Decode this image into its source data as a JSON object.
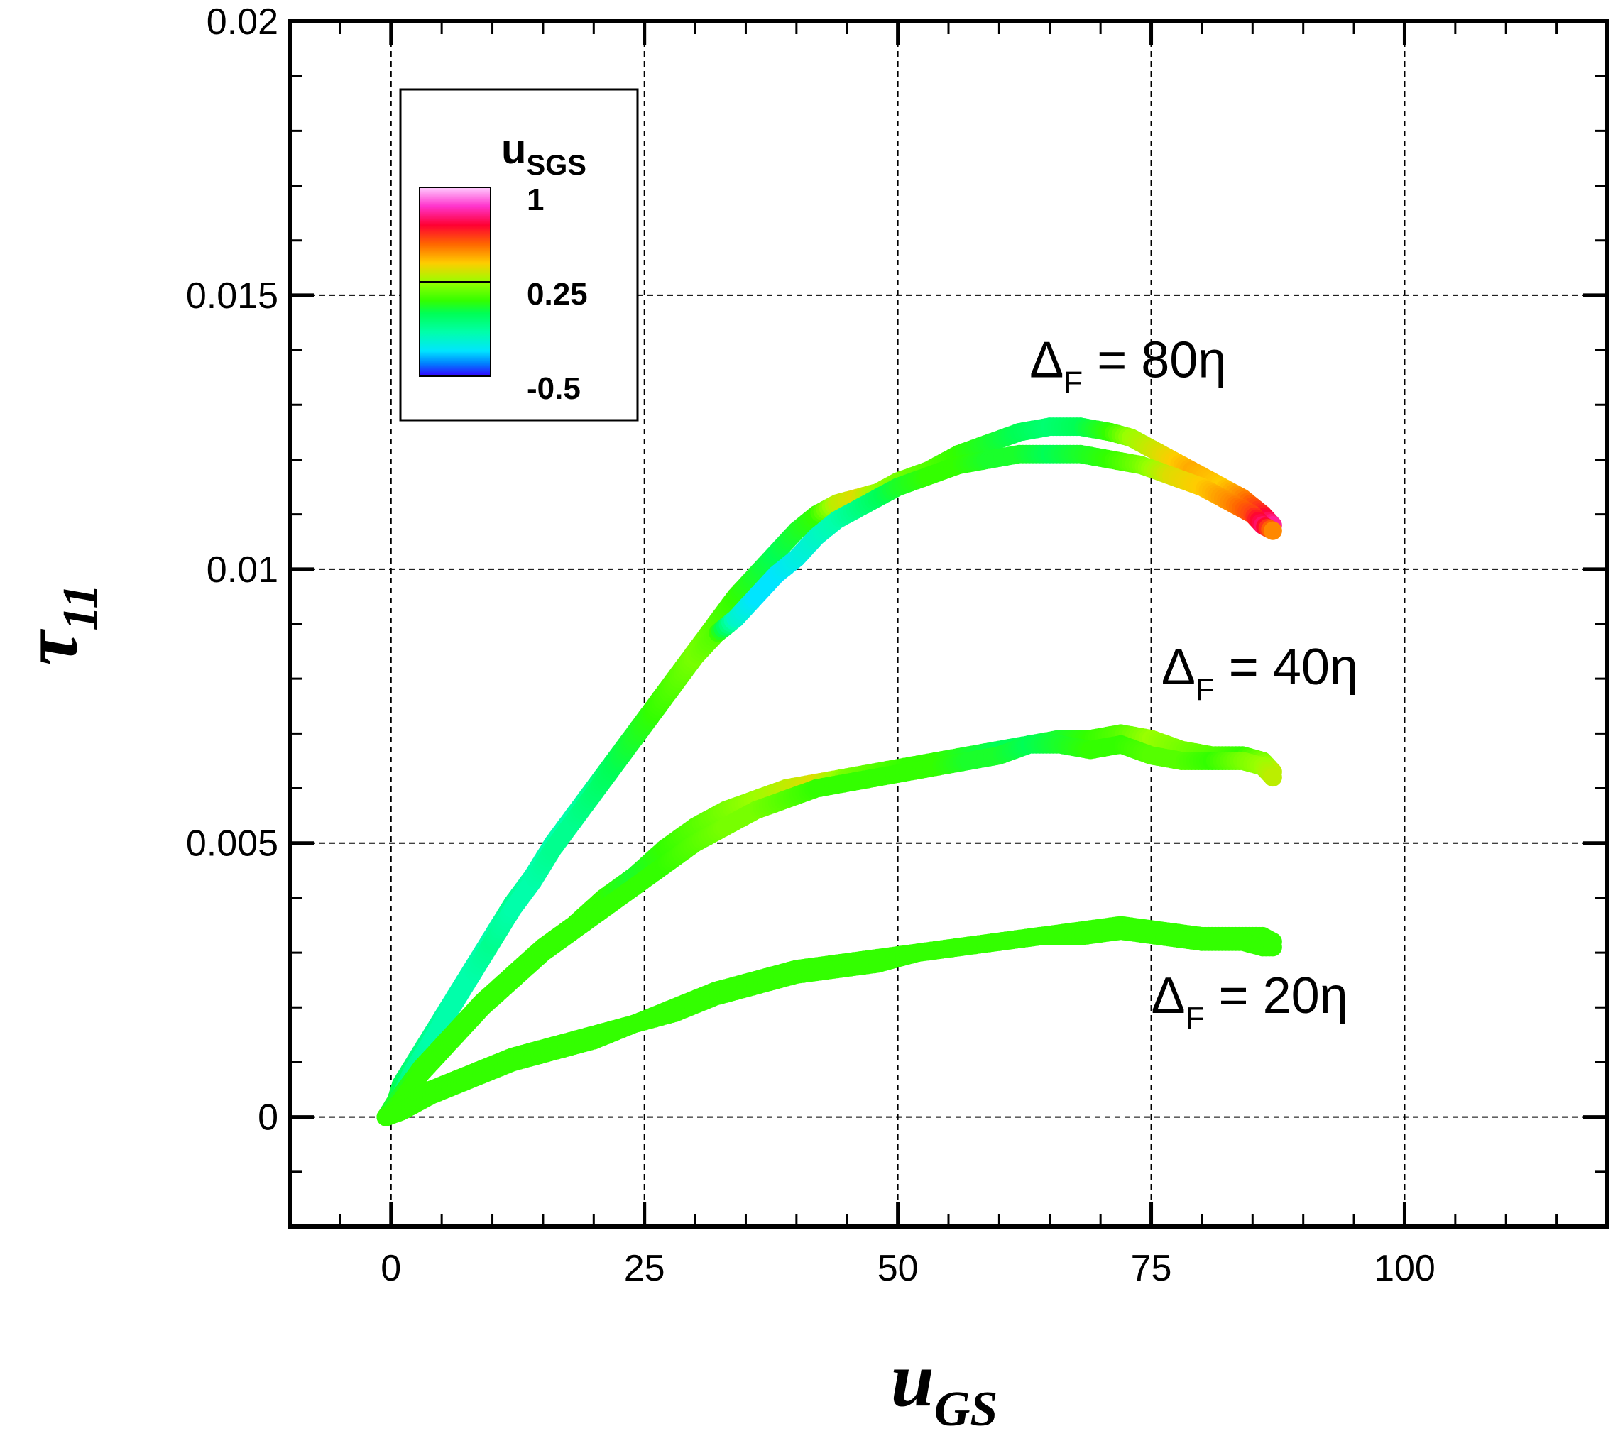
{
  "chart_data": {
    "type": "scatter",
    "xlabel": "u",
    "xlabel_sub": "GS",
    "ylabel": "τ",
    "ylabel_sub": "11",
    "xlim": [
      -10,
      120
    ],
    "ylim": [
      -0.002,
      0.02
    ],
    "x_ticks": [
      0,
      25,
      50,
      75,
      100
    ],
    "x_tick_labels": [
      "0",
      "25",
      "50",
      "75",
      "100"
    ],
    "y_ticks": [
      0,
      0.005,
      0.01,
      0.015,
      0.02
    ],
    "y_tick_labels": [
      "0",
      "0.005",
      "0.01",
      "0.015",
      "0.02"
    ],
    "grid": true,
    "colorbar": {
      "title": "u",
      "title_sub": "SGS",
      "placement": "top-left",
      "range": [
        -0.5,
        1
      ],
      "labels": [
        {
          "value": 1,
          "text": "1"
        },
        {
          "value": 0.25,
          "text": "0.25"
        },
        {
          "value": -0.5,
          "text": "-0.5"
        }
      ],
      "stops": [
        {
          "value": -0.5,
          "color": "#3300ff"
        },
        {
          "value": -0.4,
          "color": "#0080ff"
        },
        {
          "value": -0.3,
          "color": "#00e5ff"
        },
        {
          "value": -0.15,
          "color": "#00ffaa"
        },
        {
          "value": 0.0,
          "color": "#00ff55"
        },
        {
          "value": 0.1,
          "color": "#33ff00"
        },
        {
          "value": 0.25,
          "color": "#99ff00"
        },
        {
          "value": 0.4,
          "color": "#ffcc00"
        },
        {
          "value": 0.55,
          "color": "#ff6600"
        },
        {
          "value": 0.7,
          "color": "#ff0033"
        },
        {
          "value": 0.85,
          "color": "#ff33cc"
        },
        {
          "value": 1.0,
          "color": "#ffccff"
        }
      ]
    },
    "series": [
      {
        "name": "ΔF = 80η",
        "label": {
          "prefix": "Δ",
          "sub": "F",
          "suffix": " = 80η"
        },
        "label_at": [
          63,
          0.0135
        ],
        "upper": [
          [
            -0.5,
            0.0
          ],
          [
            0.5,
            0.0003
          ],
          [
            1,
            0.0006
          ],
          [
            2,
            0.0009
          ],
          [
            4,
            0.0015
          ],
          [
            6,
            0.0021
          ],
          [
            8,
            0.0027
          ],
          [
            10,
            0.0033
          ],
          [
            12,
            0.0039
          ],
          [
            14,
            0.0044
          ],
          [
            16,
            0.005
          ],
          [
            18,
            0.0055
          ],
          [
            20,
            0.006
          ],
          [
            22,
            0.0065
          ],
          [
            24,
            0.007
          ],
          [
            26,
            0.0075
          ],
          [
            28,
            0.008
          ],
          [
            30,
            0.0085
          ],
          [
            32,
            0.009
          ],
          [
            34,
            0.0095
          ],
          [
            36,
            0.0099
          ],
          [
            38,
            0.0103
          ],
          [
            40,
            0.0107
          ],
          [
            42,
            0.011
          ],
          [
            44,
            0.0112
          ],
          [
            46,
            0.0113
          ],
          [
            48,
            0.0114
          ],
          [
            50,
            0.0116
          ],
          [
            53,
            0.0118
          ],
          [
            56,
            0.0121
          ],
          [
            59,
            0.0123
          ],
          [
            62,
            0.0125
          ],
          [
            65,
            0.0126
          ],
          [
            68,
            0.0126
          ],
          [
            71,
            0.0125
          ],
          [
            73,
            0.0124
          ],
          [
            76,
            0.0121
          ],
          [
            79,
            0.0118
          ],
          [
            82,
            0.0115
          ],
          [
            84,
            0.0113
          ],
          [
            86,
            0.011
          ],
          [
            87,
            0.0108
          ]
        ],
        "upper_colors": [
          0.05,
          0.05,
          0.0,
          -0.05,
          -0.1,
          -0.15,
          -0.15,
          -0.15,
          -0.1,
          -0.15,
          -0.15,
          -0.15,
          -0.1,
          0.0,
          0.05,
          0.1,
          0.15,
          0.2,
          0.15,
          0.1,
          0.05,
          0.0,
          0.05,
          0.1,
          0.3,
          0.35,
          0.25,
          0.2,
          0.15,
          0.1,
          0.05,
          0.0,
          -0.05,
          0.0,
          0.1,
          0.25,
          0.35,
          0.45,
          0.4,
          0.5,
          0.65,
          0.8
        ],
        "lower": [
          [
            -0.5,
            0.0
          ],
          [
            0.3,
            0.0002
          ],
          [
            1,
            0.0004
          ],
          [
            2,
            0.0008
          ],
          [
            4,
            0.0014
          ],
          [
            6,
            0.002
          ],
          [
            8,
            0.0026
          ],
          [
            10,
            0.0032
          ],
          [
            12,
            0.0038
          ],
          [
            14,
            0.0043
          ],
          [
            16,
            0.0049
          ],
          [
            18,
            0.0054
          ],
          [
            20,
            0.0059
          ],
          [
            22,
            0.0064
          ],
          [
            24,
            0.0069
          ],
          [
            26,
            0.0074
          ],
          [
            28,
            0.0079
          ],
          [
            30,
            0.0084
          ],
          [
            32,
            0.0088
          ],
          [
            34,
            0.0091
          ],
          [
            36,
            0.0095
          ],
          [
            38,
            0.0099
          ],
          [
            40,
            0.0102
          ],
          [
            42,
            0.0106
          ],
          [
            44,
            0.0109
          ],
          [
            47,
            0.0112
          ],
          [
            50,
            0.0115
          ],
          [
            53,
            0.0117
          ],
          [
            56,
            0.0119
          ],
          [
            59,
            0.012
          ],
          [
            62,
            0.0121
          ],
          [
            65,
            0.0121
          ],
          [
            68,
            0.0121
          ],
          [
            71,
            0.012
          ],
          [
            74,
            0.0119
          ],
          [
            77,
            0.0117
          ],
          [
            80,
            0.0115
          ],
          [
            83,
            0.0112
          ],
          [
            85,
            0.011
          ],
          [
            86,
            0.0108
          ],
          [
            87,
            0.0107
          ]
        ],
        "lower_colors": [
          0.05,
          0.0,
          -0.05,
          -0.1,
          -0.15,
          -0.15,
          -0.15,
          -0.1,
          -0.15,
          -0.15,
          -0.1,
          -0.1,
          -0.05,
          0.0,
          0.05,
          0.1,
          0.15,
          0.2,
          0.15,
          -0.2,
          -0.3,
          -0.3,
          -0.25,
          -0.2,
          -0.15,
          -0.05,
          0.05,
          0.1,
          0.1,
          0.05,
          0.05,
          0.0,
          0.05,
          0.1,
          0.2,
          0.35,
          0.4,
          0.5,
          0.6,
          0.75,
          0.5
        ]
      },
      {
        "name": "ΔF = 40η",
        "label": {
          "prefix": "Δ",
          "sub": "F",
          "suffix": " = 40η"
        },
        "label_at": [
          76,
          0.0079
        ],
        "upper": [
          [
            -0.5,
            0.0
          ],
          [
            1,
            0.0004
          ],
          [
            3,
            0.0009
          ],
          [
            6,
            0.0015
          ],
          [
            9,
            0.0021
          ],
          [
            12,
            0.0026
          ],
          [
            15,
            0.0031
          ],
          [
            18,
            0.0035
          ],
          [
            21,
            0.004
          ],
          [
            24,
            0.0044
          ],
          [
            27,
            0.0049
          ],
          [
            30,
            0.0053
          ],
          [
            33,
            0.0056
          ],
          [
            36,
            0.0058
          ],
          [
            39,
            0.006
          ],
          [
            42,
            0.0061
          ],
          [
            45,
            0.0062
          ],
          [
            48,
            0.0063
          ],
          [
            51,
            0.0064
          ],
          [
            54,
            0.0065
          ],
          [
            57,
            0.0066
          ],
          [
            60,
            0.0067
          ],
          [
            63,
            0.0068
          ],
          [
            66,
            0.0069
          ],
          [
            69,
            0.0069
          ],
          [
            72,
            0.007
          ],
          [
            75,
            0.0069
          ],
          [
            78,
            0.0067
          ],
          [
            81,
            0.0066
          ],
          [
            84,
            0.0066
          ],
          [
            86,
            0.0065
          ],
          [
            87,
            0.0063
          ]
        ],
        "upper_colors": [
          0.05,
          0.05,
          0.1,
          0.1,
          0.1,
          0.1,
          0.1,
          0.1,
          0.1,
          0.05,
          0.1,
          0.15,
          0.2,
          0.25,
          0.3,
          0.35,
          0.2,
          0.15,
          0.1,
          0.1,
          0.05,
          0.0,
          0.0,
          0.05,
          0.1,
          0.15,
          0.25,
          0.2,
          0.15,
          0.1,
          0.2,
          0.3
        ],
        "lower": [
          [
            -0.5,
            0.0
          ],
          [
            1,
            0.0003
          ],
          [
            3,
            0.0008
          ],
          [
            6,
            0.0014
          ],
          [
            9,
            0.002
          ],
          [
            12,
            0.0025
          ],
          [
            15,
            0.003
          ],
          [
            18,
            0.0034
          ],
          [
            21,
            0.0038
          ],
          [
            24,
            0.0042
          ],
          [
            27,
            0.0046
          ],
          [
            30,
            0.005
          ],
          [
            33,
            0.0053
          ],
          [
            36,
            0.0056
          ],
          [
            39,
            0.0058
          ],
          [
            42,
            0.006
          ],
          [
            45,
            0.0061
          ],
          [
            48,
            0.0062
          ],
          [
            51,
            0.0063
          ],
          [
            54,
            0.0064
          ],
          [
            57,
            0.0065
          ],
          [
            60,
            0.0066
          ],
          [
            63,
            0.0068
          ],
          [
            66,
            0.0068
          ],
          [
            69,
            0.0067
          ],
          [
            72,
            0.0068
          ],
          [
            75,
            0.0066
          ],
          [
            78,
            0.0065
          ],
          [
            81,
            0.0065
          ],
          [
            84,
            0.0065
          ],
          [
            86,
            0.0064
          ],
          [
            87,
            0.0062
          ]
        ],
        "lower_colors": [
          0.05,
          0.1,
          0.1,
          0.1,
          0.1,
          0.1,
          0.1,
          0.1,
          0.1,
          0.1,
          0.1,
          0.15,
          0.2,
          0.2,
          0.15,
          0.1,
          0.1,
          0.1,
          0.1,
          0.1,
          0.05,
          0.05,
          0.0,
          0.05,
          0.1,
          0.1,
          0.15,
          0.15,
          0.1,
          0.2,
          0.25,
          0.3
        ]
      },
      {
        "name": "ΔF = 20η",
        "label": {
          "prefix": "Δ",
          "sub": "F",
          "suffix": " = 20η"
        },
        "label_at": [
          75,
          0.0019
        ],
        "upper": [
          [
            -0.5,
            0.0
          ],
          [
            1,
            0.0002
          ],
          [
            4,
            0.0005
          ],
          [
            8,
            0.0008
          ],
          [
            12,
            0.0011
          ],
          [
            16,
            0.0013
          ],
          [
            20,
            0.0015
          ],
          [
            24,
            0.0017
          ],
          [
            28,
            0.002
          ],
          [
            32,
            0.0023
          ],
          [
            36,
            0.0025
          ],
          [
            40,
            0.0027
          ],
          [
            44,
            0.0028
          ],
          [
            48,
            0.0029
          ],
          [
            52,
            0.003
          ],
          [
            56,
            0.0031
          ],
          [
            60,
            0.0032
          ],
          [
            64,
            0.0033
          ],
          [
            68,
            0.0034
          ],
          [
            72,
            0.0035
          ],
          [
            76,
            0.0034
          ],
          [
            80,
            0.0033
          ],
          [
            84,
            0.0033
          ],
          [
            86,
            0.0033
          ],
          [
            87,
            0.0032
          ]
        ],
        "upper_colors": [
          0.1,
          0.1,
          0.1,
          0.1,
          0.1,
          0.1,
          0.1,
          0.1,
          0.1,
          0.1,
          0.1,
          0.1,
          0.1,
          0.1,
          0.1,
          0.1,
          0.1,
          0.1,
          0.1,
          0.1,
          0.1,
          0.1,
          0.1,
          0.1,
          0.1
        ],
        "lower": [
          [
            -0.5,
            0.0
          ],
          [
            1,
            0.0001
          ],
          [
            4,
            0.0004
          ],
          [
            8,
            0.0007
          ],
          [
            12,
            0.001
          ],
          [
            16,
            0.0012
          ],
          [
            20,
            0.0014
          ],
          [
            24,
            0.0017
          ],
          [
            28,
            0.0019
          ],
          [
            32,
            0.0022
          ],
          [
            36,
            0.0024
          ],
          [
            40,
            0.0026
          ],
          [
            44,
            0.0027
          ],
          [
            48,
            0.0028
          ],
          [
            52,
            0.003
          ],
          [
            56,
            0.0031
          ],
          [
            60,
            0.0032
          ],
          [
            64,
            0.0033
          ],
          [
            68,
            0.0033
          ],
          [
            72,
            0.0034
          ],
          [
            76,
            0.0033
          ],
          [
            80,
            0.0032
          ],
          [
            84,
            0.0032
          ],
          [
            86,
            0.0031
          ],
          [
            87,
            0.0031
          ]
        ],
        "lower_colors": [
          0.1,
          0.1,
          0.1,
          0.1,
          0.1,
          0.1,
          0.1,
          0.1,
          0.1,
          0.1,
          0.1,
          0.1,
          0.1,
          0.1,
          0.1,
          0.1,
          0.1,
          0.1,
          0.1,
          0.1,
          0.1,
          0.1,
          0.1,
          0.1,
          0.1
        ]
      }
    ]
  }
}
